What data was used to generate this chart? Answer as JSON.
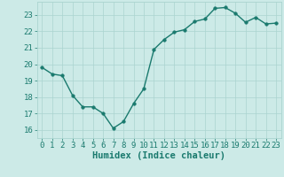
{
  "x": [
    0,
    1,
    2,
    3,
    4,
    5,
    6,
    7,
    8,
    9,
    10,
    11,
    12,
    13,
    14,
    15,
    16,
    17,
    18,
    19,
    20,
    21,
    22,
    23
  ],
  "y": [
    19.8,
    19.4,
    19.3,
    18.1,
    17.4,
    17.4,
    17.0,
    16.1,
    16.5,
    17.6,
    18.5,
    20.9,
    21.5,
    21.95,
    22.1,
    22.6,
    22.75,
    23.4,
    23.45,
    23.1,
    22.55,
    22.85,
    22.45,
    22.5
  ],
  "line_color": "#1a7a6e",
  "marker_color": "#1a7a6e",
  "background_color": "#cceae7",
  "grid_color": "#aad4d0",
  "tick_color": "#1a7a6e",
  "xlabel": "Humidex (Indice chaleur)",
  "xlim": [
    -0.5,
    23.5
  ],
  "ylim": [
    15.5,
    23.8
  ],
  "yticks": [
    16,
    17,
    18,
    19,
    20,
    21,
    22,
    23
  ],
  "xticks": [
    0,
    1,
    2,
    3,
    4,
    5,
    6,
    7,
    8,
    9,
    10,
    11,
    12,
    13,
    14,
    15,
    16,
    17,
    18,
    19,
    20,
    21,
    22,
    23
  ],
  "xlabel_fontsize": 7.5,
  "tick_fontsize": 6.5,
  "marker_size": 2.5,
  "line_width": 1.0
}
